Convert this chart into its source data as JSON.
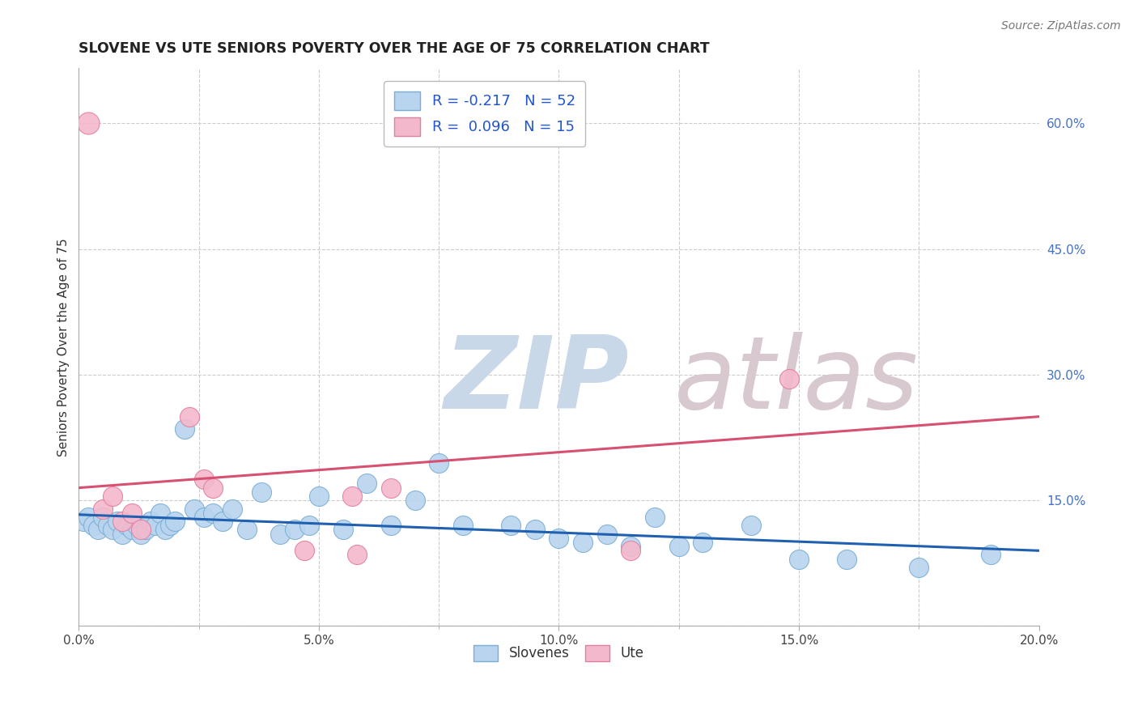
{
  "title": "SLOVENE VS UTE SENIORS POVERTY OVER THE AGE OF 75 CORRELATION CHART",
  "source": "Source: ZipAtlas.com",
  "ylabel": "Seniors Poverty Over the Age of 75",
  "xlim": [
    0.0,
    0.2
  ],
  "ylim": [
    0.0,
    0.666
  ],
  "xtick_positions": [
    0.0,
    0.05,
    0.1,
    0.15,
    0.2
  ],
  "xtick_labels": [
    "0.0%",
    "5.0%",
    "10.0%",
    "15.0%",
    "20.0%"
  ],
  "xtick_minor": [
    0.025,
    0.075,
    0.125,
    0.175
  ],
  "ytick_positions": [
    0.0,
    0.15,
    0.3,
    0.45,
    0.6
  ],
  "ytick_labels_right": [
    "",
    "15.0%",
    "30.0%",
    "45.0%",
    "60.0%"
  ],
  "grid_color": "#cccccc",
  "background_color": "#ffffff",
  "slovene_color": "#b8d4ee",
  "slovene_edge_color": "#7aaed4",
  "ute_color": "#f4b8cc",
  "ute_edge_color": "#e080a0",
  "slovene_line_color": "#2060b0",
  "ute_line_color": "#d85070",
  "slovene_R": -0.217,
  "slovene_N": 52,
  "ute_R": 0.096,
  "ute_N": 15,
  "legend_label_slovene": "Slovenes",
  "legend_label_ute": "Ute",
  "watermark_zip": "ZIP",
  "watermark_atlas": "atlas",
  "watermark_zip_color": "#c8d8e8",
  "watermark_atlas_color": "#d8c8d0",
  "slovene_x": [
    0.001,
    0.002,
    0.003,
    0.004,
    0.005,
    0.006,
    0.007,
    0.008,
    0.009,
    0.01,
    0.011,
    0.012,
    0.013,
    0.014,
    0.015,
    0.016,
    0.017,
    0.018,
    0.019,
    0.02,
    0.022,
    0.024,
    0.026,
    0.028,
    0.03,
    0.032,
    0.035,
    0.038,
    0.042,
    0.045,
    0.048,
    0.05,
    0.055,
    0.06,
    0.065,
    0.07,
    0.075,
    0.08,
    0.09,
    0.095,
    0.1,
    0.105,
    0.11,
    0.115,
    0.12,
    0.125,
    0.13,
    0.14,
    0.15,
    0.16,
    0.175,
    0.19
  ],
  "slovene_y": [
    0.125,
    0.13,
    0.12,
    0.115,
    0.13,
    0.12,
    0.115,
    0.125,
    0.11,
    0.12,
    0.115,
    0.12,
    0.11,
    0.115,
    0.125,
    0.12,
    0.135,
    0.115,
    0.12,
    0.125,
    0.235,
    0.14,
    0.13,
    0.135,
    0.125,
    0.14,
    0.115,
    0.16,
    0.11,
    0.115,
    0.12,
    0.155,
    0.115,
    0.17,
    0.12,
    0.15,
    0.195,
    0.12,
    0.12,
    0.115,
    0.105,
    0.1,
    0.11,
    0.095,
    0.13,
    0.095,
    0.1,
    0.12,
    0.08,
    0.08,
    0.07,
    0.085
  ],
  "ute_x": [
    0.002,
    0.005,
    0.007,
    0.009,
    0.011,
    0.013,
    0.023,
    0.026,
    0.028,
    0.047,
    0.058,
    0.065,
    0.057,
    0.115,
    0.148
  ],
  "ute_y": [
    0.6,
    0.14,
    0.155,
    0.125,
    0.135,
    0.115,
    0.25,
    0.175,
    0.165,
    0.09,
    0.085,
    0.165,
    0.155,
    0.09,
    0.295
  ],
  "slovene_trendline_x": [
    0.0,
    0.2
  ],
  "slovene_trendline_y": [
    0.133,
    0.09
  ],
  "ute_trendline_x": [
    0.0,
    0.2
  ],
  "ute_trendline_y": [
    0.165,
    0.25
  ]
}
